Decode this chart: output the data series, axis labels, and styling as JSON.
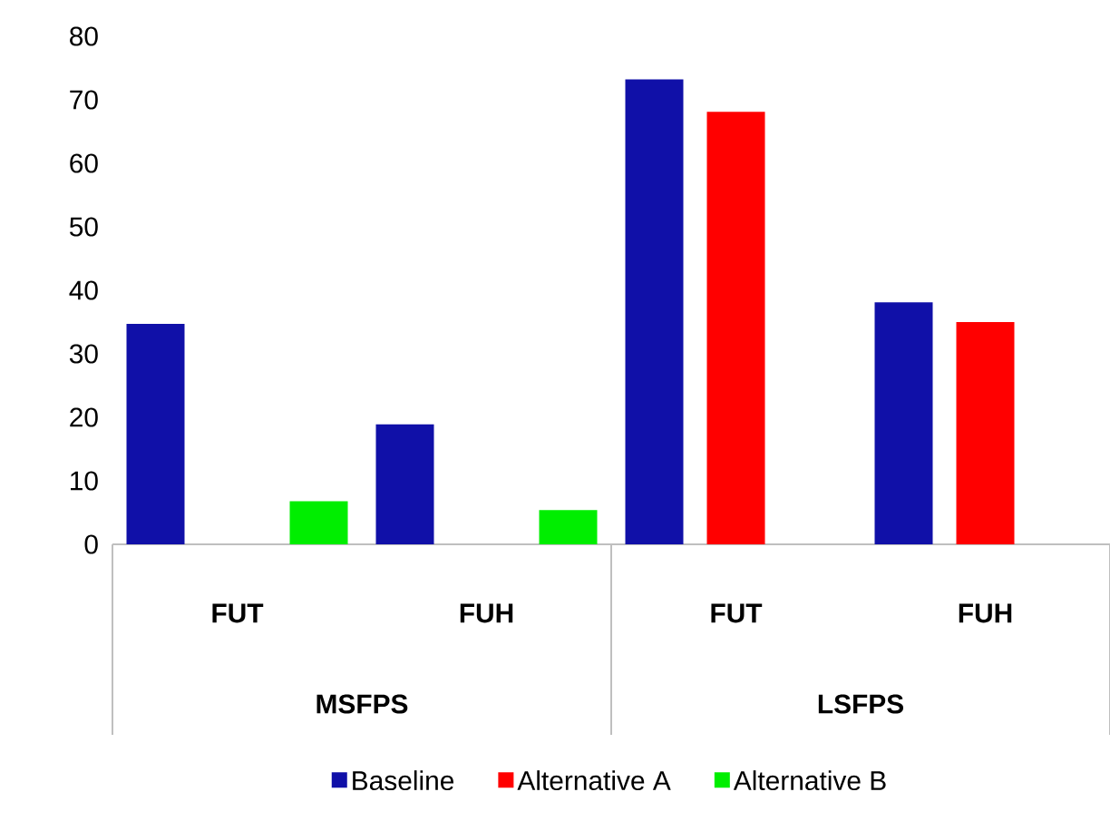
{
  "chart_data": {
    "type": "bar",
    "categories": [
      "FUT",
      "FUH",
      "FUT",
      "FUH"
    ],
    "annotations": [
      "MSFPS",
      "LSFPS"
    ],
    "series": [
      {
        "name": "Baseline",
        "color": "#1010a8",
        "values": [
          34.7,
          18.9,
          73.2,
          38.1
        ]
      },
      {
        "name": "Alternative A",
        "color": "#ff0000",
        "values": [
          null,
          null,
          68.1,
          35.0
        ]
      },
      {
        "name": "Alternative B",
        "color": "#00ee00",
        "values": [
          6.8,
          5.4,
          null,
          null
        ]
      }
    ],
    "ylim": [
      0,
      80
    ],
    "yticks": [
      0,
      10,
      20,
      30,
      40,
      50,
      60,
      70,
      80
    ],
    "grid": false,
    "legend": "bottom"
  }
}
